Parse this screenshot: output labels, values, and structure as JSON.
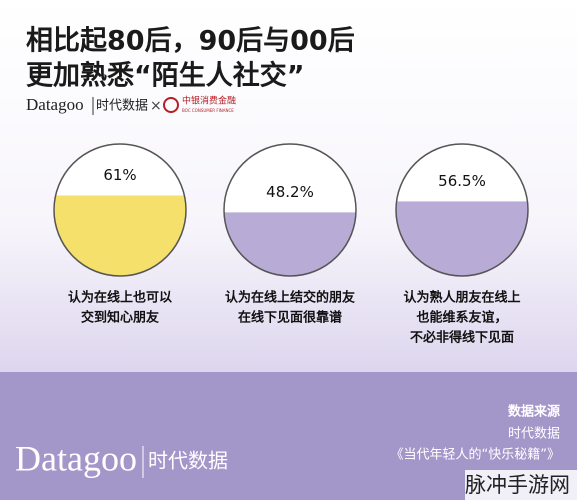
{
  "header": {
    "title_lines": [
      "相比起80后，90后与00后",
      "更加熟悉“陌生人社交”"
    ],
    "brand": "Datagoo",
    "brand_cn": "时代数据",
    "separator": "×",
    "partner": "中银消费金融",
    "partner_en": "BOC CONSUMER FINANCE"
  },
  "chart_data": {
    "type": "circle-fill",
    "categories": [
      [
        "认为在线上也可以",
        "交到知心朋友"
      ],
      [
        "认为在线上结交的朋友",
        "在线下见面很靠谱"
      ],
      [
        "认为熟人朋友在线上",
        "也能维系友谊，",
        "不必非得线下见面"
      ]
    ],
    "values": [
      61,
      48.2,
      56.5
    ],
    "value_labels": [
      "61%",
      "48.2%",
      "56.5%"
    ],
    "colors": [
      "#f5e06c",
      "#b8acd7",
      "#b8acd7"
    ],
    "ylim": [
      0,
      100
    ]
  },
  "footer": {
    "brand": "Datagoo",
    "brand_cn": "时代数据",
    "source_title": "数据来源",
    "source": "时代数据",
    "report": "《当代年轻人的“快乐秘籍”》",
    "watermark": "脉冲手游网"
  }
}
